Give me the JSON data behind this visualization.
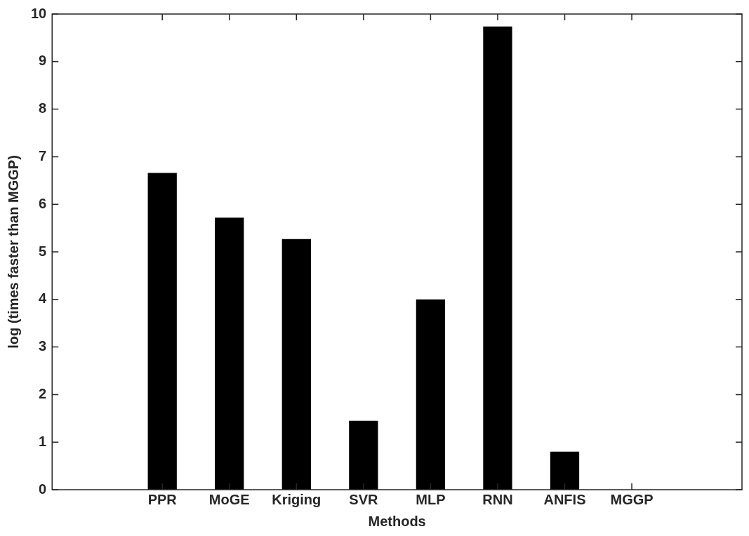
{
  "chart_data": {
    "type": "bar",
    "xlabel": "Methods",
    "ylabel": "log (times faster than MGGP)",
    "categories": [
      "PPR",
      "MoGE",
      "Kriging",
      "SVR",
      "MLP",
      "RNN",
      "ANFIS",
      "MGGP"
    ],
    "values": [
      6.66,
      5.72,
      5.27,
      1.45,
      4.0,
      9.74,
      0.8,
      0
    ],
    "color": "#000000",
    "ylim": [
      0,
      10
    ],
    "yticks": [
      0,
      1,
      2,
      3,
      4,
      5,
      6,
      7,
      8,
      9,
      10
    ],
    "grid": false,
    "legend": false
  }
}
